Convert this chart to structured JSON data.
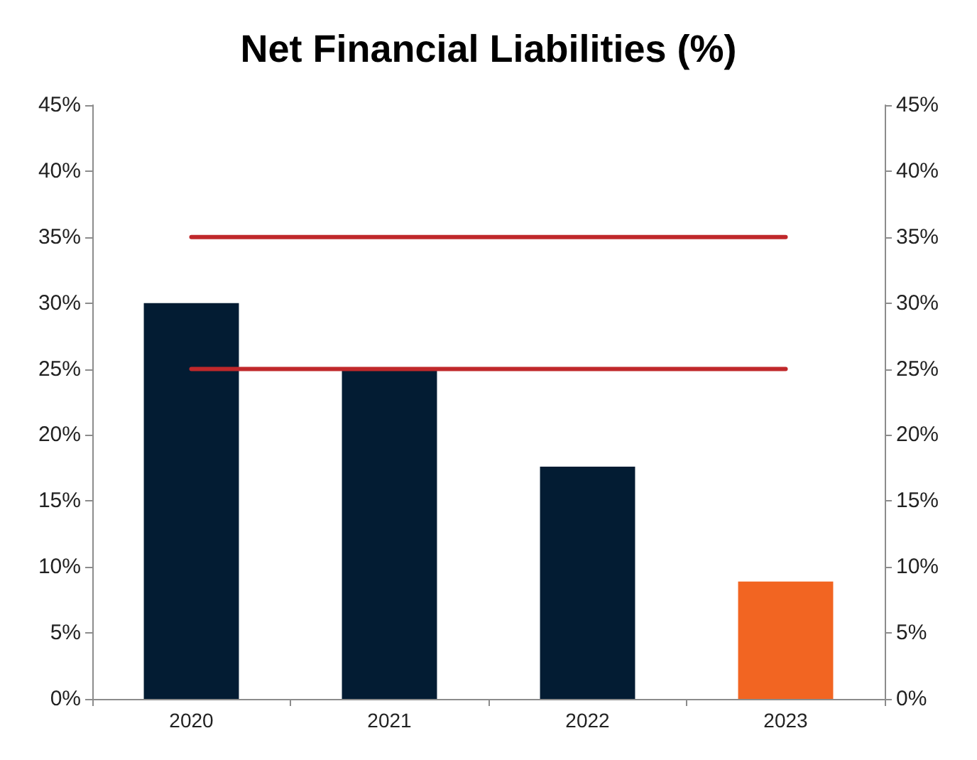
{
  "chart_data": {
    "type": "bar",
    "title": "Net Financial Liabilities (%)",
    "categories": [
      "2020",
      "2021",
      "2022",
      "2023"
    ],
    "series": [
      {
        "colors": [
          "#031c33",
          "#031c33",
          "#031c33",
          "#f26522"
        ],
        "values": [
          30,
          25,
          17.6,
          8.9
        ]
      },
      {
        "type": "line",
        "color": "#c0282b",
        "values": [
          35,
          35,
          35,
          35
        ]
      },
      {
        "type": "line",
        "color": "#c0282b",
        "values": [
          25,
          25,
          25,
          25
        ]
      }
    ],
    "ylim": [
      0,
      45
    ],
    "yticks": [
      {
        "value": 0,
        "label": "0%"
      },
      {
        "value": 5,
        "label": "5%"
      },
      {
        "value": 10,
        "label": "10%"
      },
      {
        "value": 15,
        "label": "15%"
      },
      {
        "value": 20,
        "label": "20%"
      },
      {
        "value": 25,
        "label": "25%"
      },
      {
        "value": 30,
        "label": "30%"
      },
      {
        "value": 35,
        "label": "35%"
      },
      {
        "value": 40,
        "label": "40%"
      },
      {
        "value": 45,
        "label": "45%"
      }
    ],
    "y2lim": [
      0,
      45
    ],
    "y2ticks": [
      {
        "value": 0,
        "label": "0%"
      },
      {
        "value": 5,
        "label": "5%"
      },
      {
        "value": 10,
        "label": "10%"
      },
      {
        "value": 15,
        "label": "15%"
      },
      {
        "value": 20,
        "label": "20%"
      },
      {
        "value": 25,
        "label": "25%"
      },
      {
        "value": 30,
        "label": "30%"
      },
      {
        "value": 35,
        "label": "35%"
      },
      {
        "value": 40,
        "label": "40%"
      },
      {
        "value": 45,
        "label": "45%"
      }
    ],
    "grid": false,
    "marker": "none",
    "line_style": "solid"
  }
}
